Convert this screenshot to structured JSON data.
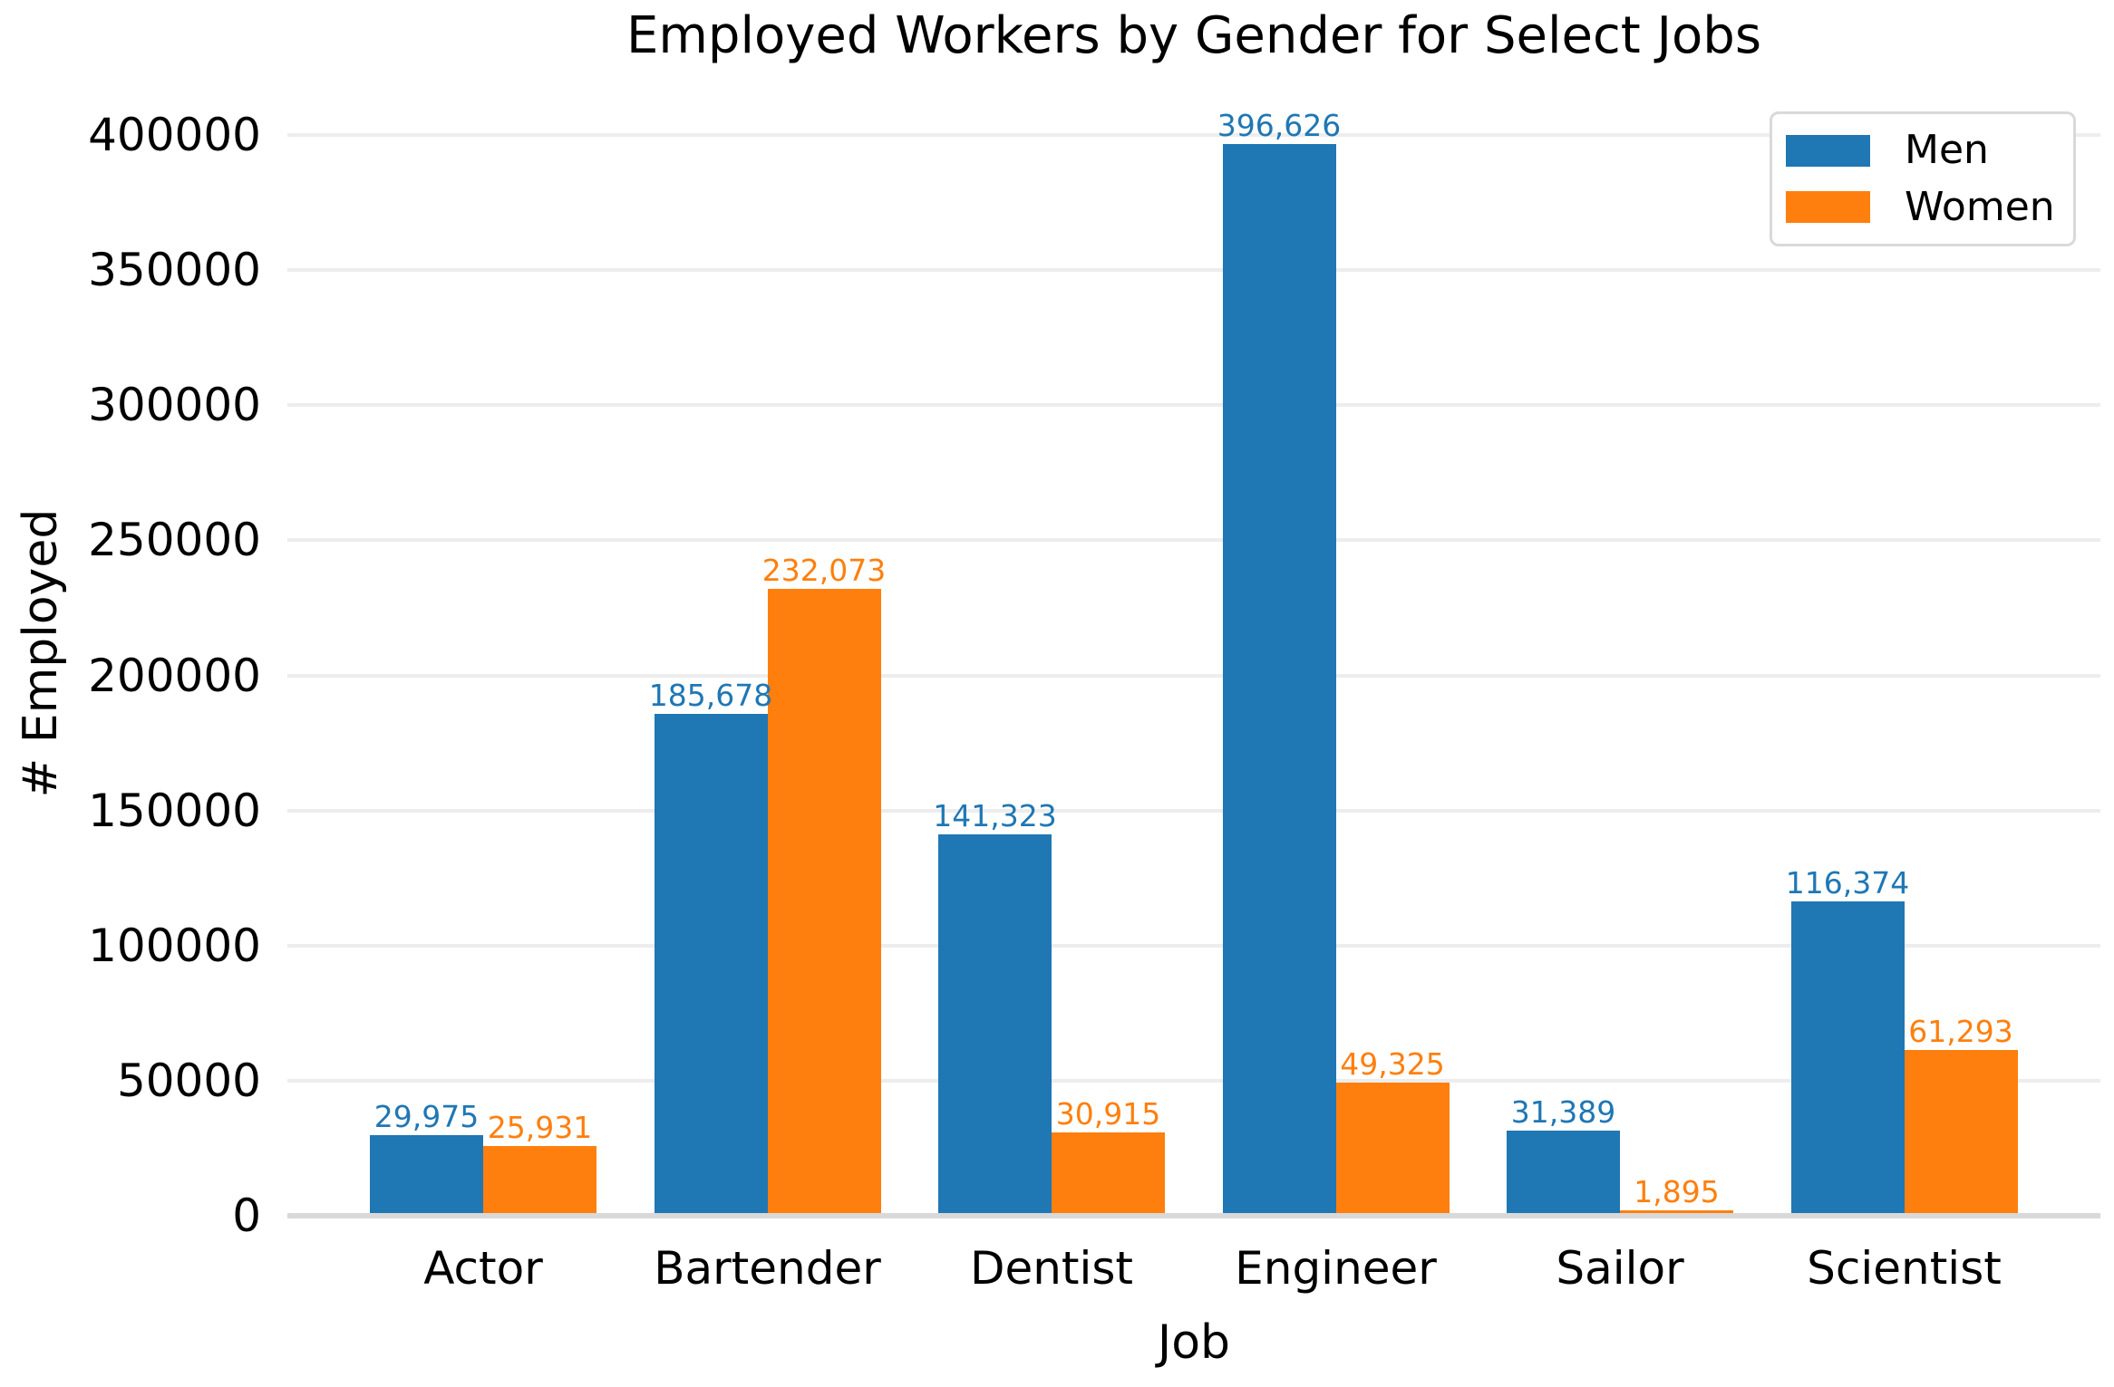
{
  "chart_data": {
    "type": "bar",
    "title": "Employed Workers by Gender for Select Jobs",
    "xlabel": "Job",
    "ylabel": "# Employed",
    "categories": [
      "Actor",
      "Bartender",
      "Dentist",
      "Engineer",
      "Sailor",
      "Scientist"
    ],
    "series": [
      {
        "name": "Men",
        "color": "#1f77b4",
        "values": [
          29975,
          185678,
          141323,
          396626,
          31389,
          116374
        ],
        "value_labels": [
          "29,975",
          "185,678",
          "141,323",
          "396,626",
          "31,389",
          "116,374"
        ]
      },
      {
        "name": "Women",
        "color": "#ff7f0e",
        "values": [
          25931,
          232073,
          30915,
          49325,
          1895,
          61293
        ],
        "value_labels": [
          "25,931",
          "232,073",
          "30,915",
          "49,325",
          "1,895",
          "61,293"
        ]
      }
    ],
    "yticks": {
      "values": [
        0,
        50000,
        100000,
        150000,
        200000,
        250000,
        300000,
        350000,
        400000
      ],
      "labels": [
        "0",
        "50000",
        "100000",
        "150000",
        "200000",
        "250000",
        "300000",
        "350000",
        "400000"
      ]
    },
    "ylim": [
      0,
      420000
    ],
    "grid": "horizontal",
    "grid_color": "#ededed",
    "axis_line_color": "#d9d9d9",
    "legend_position": "top-right",
    "legend_labels": [
      "Men",
      "Women"
    ]
  }
}
